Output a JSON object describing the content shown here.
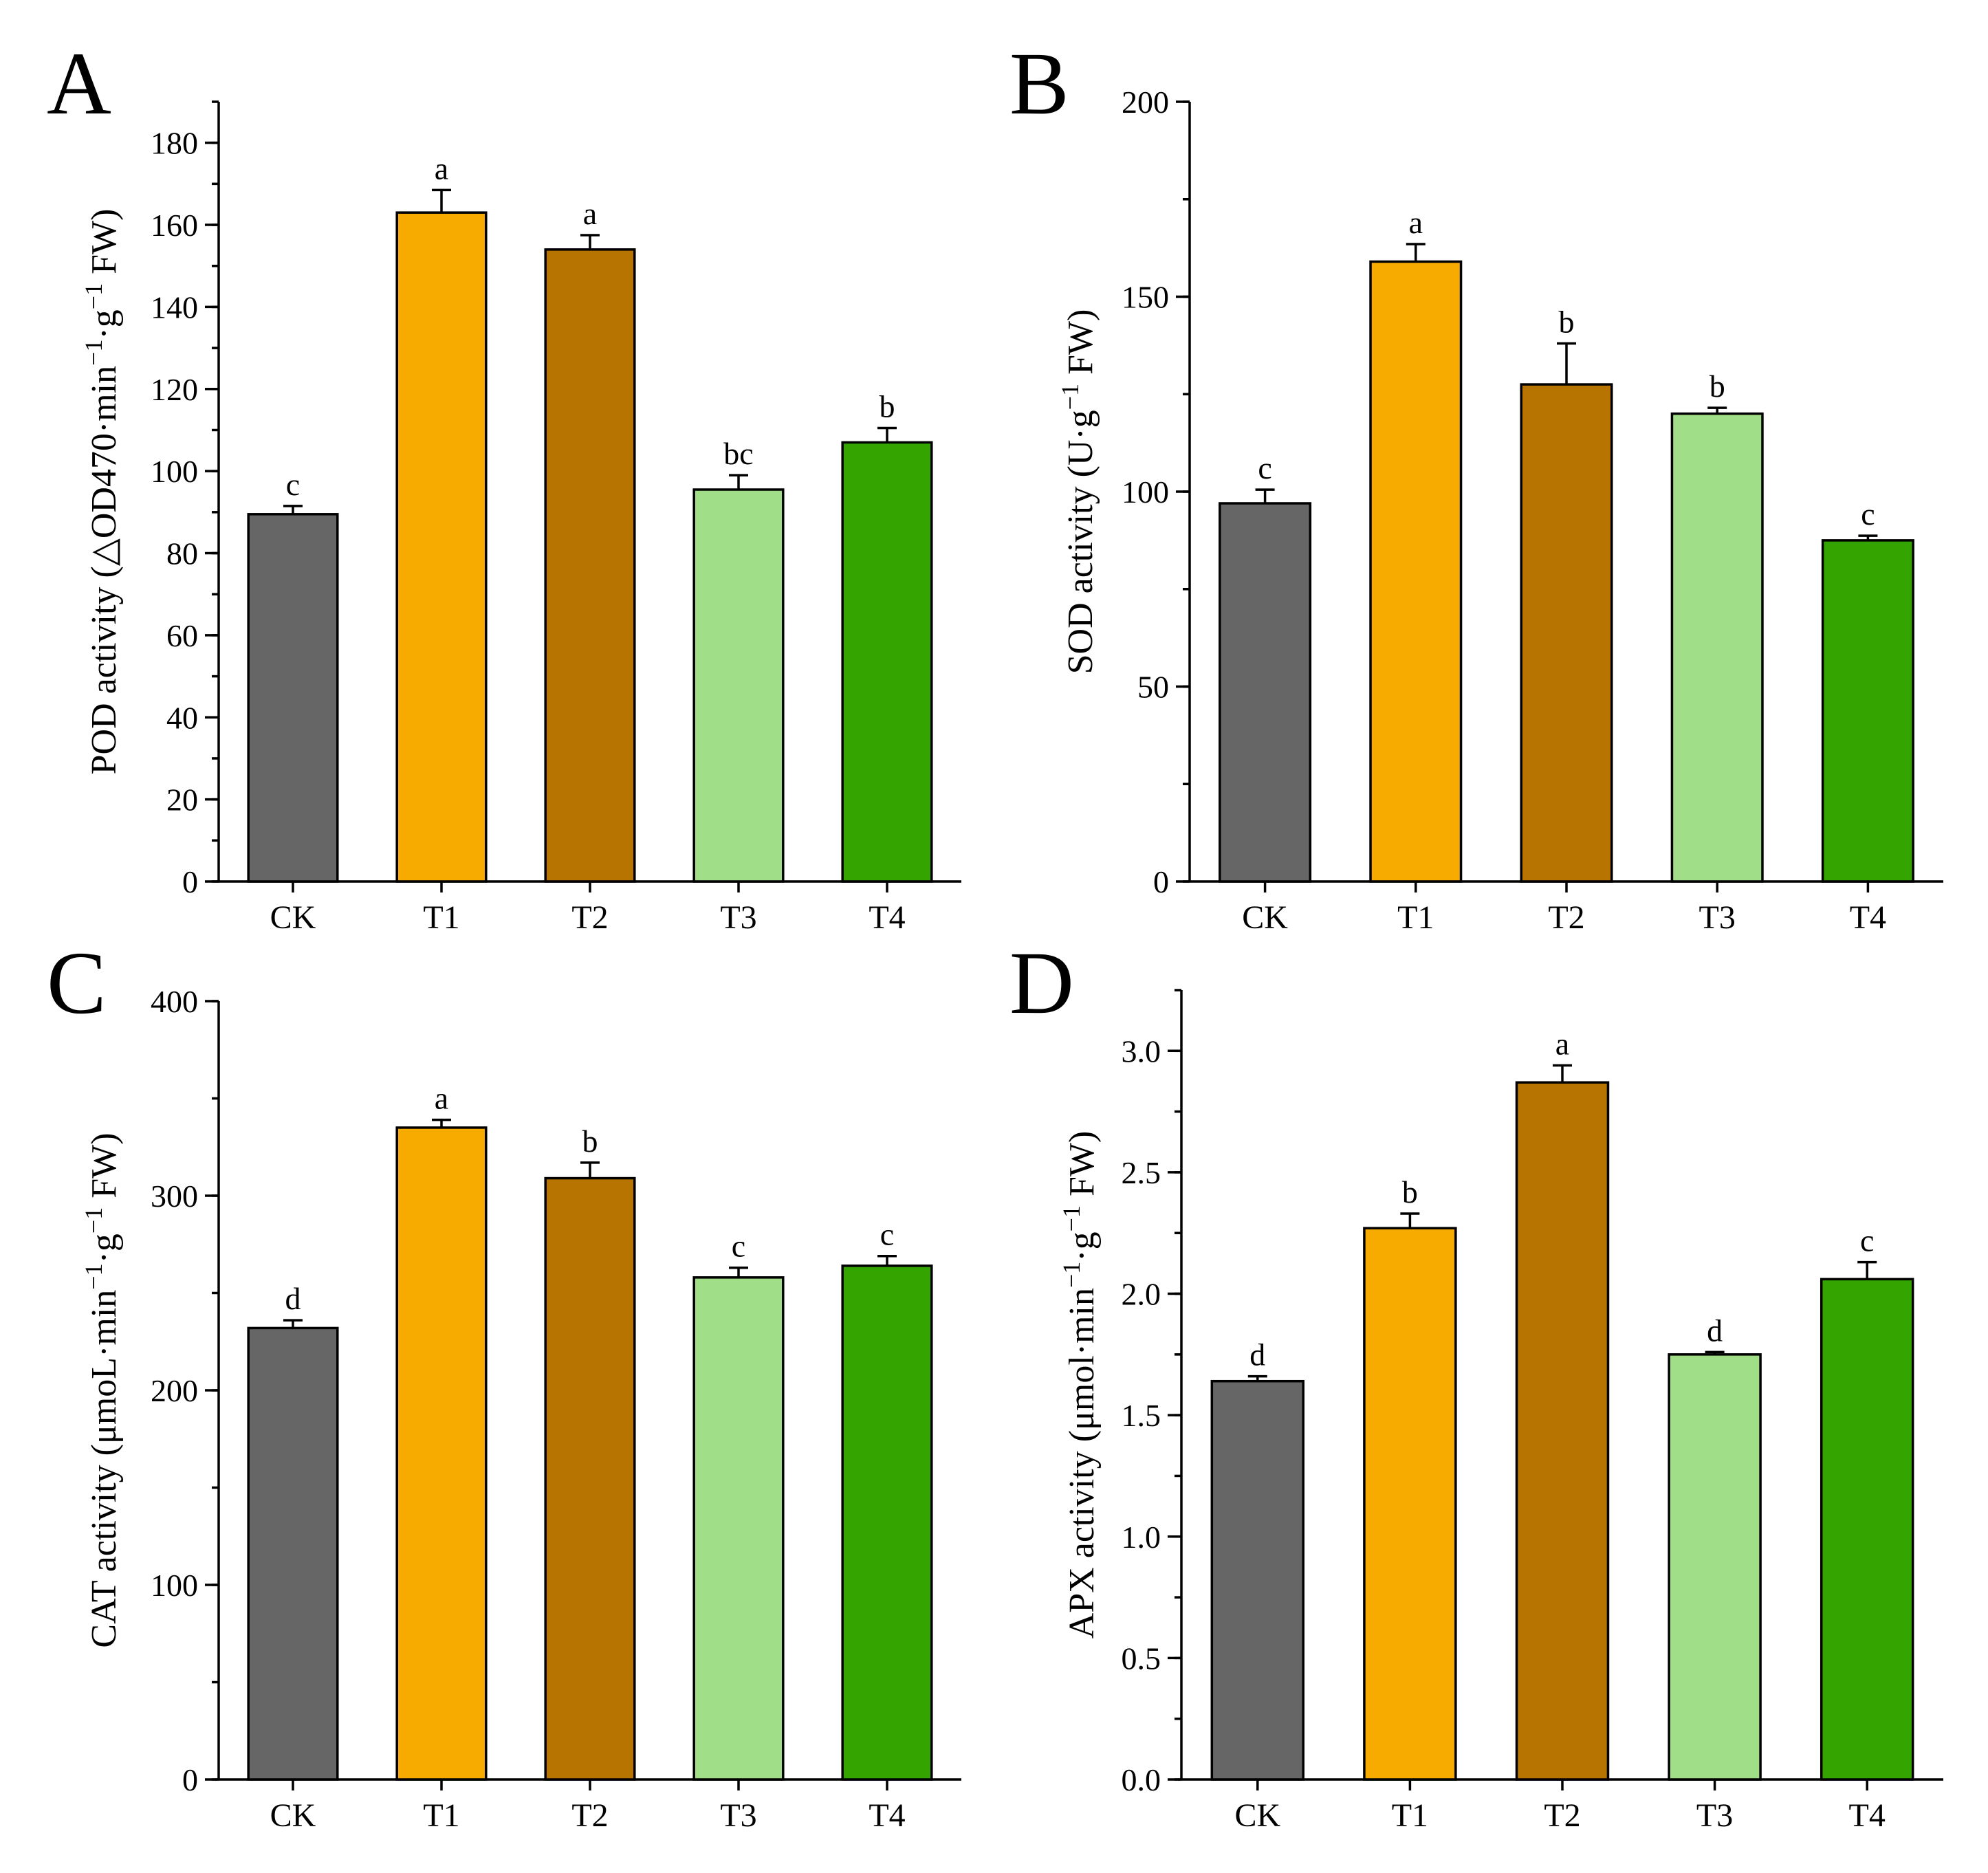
{
  "categories": [
    "CK",
    "T1",
    "T2",
    "T3",
    "T4"
  ],
  "colors": {
    "CK": "#666666",
    "T1": "#f7aa00",
    "T2": "#b77400",
    "T3": "#a0df88",
    "T4": "#33a400"
  },
  "chart_data": [
    {
      "type": "bar",
      "panel": "A",
      "categories": [
        "CK",
        "T1",
        "T2",
        "T3",
        "T4"
      ],
      "values": [
        89.5,
        163,
        154,
        95.5,
        107
      ],
      "errors": [
        2,
        5.5,
        3.5,
        3.5,
        3.5
      ],
      "significance": [
        "c",
        "a",
        "a",
        "bc",
        "b"
      ],
      "ylabel_parts": [
        {
          "text": "POD activity (",
          "sup": false
        },
        {
          "text": "△",
          "sup": false
        },
        {
          "text": "OD470·min",
          "sup": false
        },
        {
          "text": "−1",
          "sup": true
        },
        {
          "text": "·g",
          "sup": false
        },
        {
          "text": "−1",
          "sup": true
        },
        {
          "text": " FW)",
          "sup": false
        }
      ],
      "ylim": [
        0,
        190
      ],
      "yticks": [
        0,
        20,
        40,
        60,
        80,
        100,
        120,
        140,
        160,
        180
      ],
      "ytick_labels": [
        "0",
        "20",
        "40",
        "60",
        "80",
        "100",
        "120",
        "140",
        "160",
        "180"
      ],
      "minor_step": 10
    },
    {
      "type": "bar",
      "panel": "B",
      "categories": [
        "CK",
        "T1",
        "T2",
        "T3",
        "T4"
      ],
      "values": [
        97,
        159,
        127.5,
        120,
        87.5
      ],
      "errors": [
        3.5,
        4.5,
        10.5,
        1.5,
        1.2
      ],
      "significance": [
        "c",
        "a",
        "b",
        "b",
        "c"
      ],
      "ylabel_parts": [
        {
          "text": "SOD activity (U·g",
          "sup": false
        },
        {
          "text": "−1",
          "sup": true
        },
        {
          "text": " FW)",
          "sup": false
        }
      ],
      "ylim": [
        0,
        200
      ],
      "yticks": [
        0,
        50,
        100,
        150,
        200
      ],
      "ytick_labels": [
        "0",
        "50",
        "100",
        "150",
        "200"
      ],
      "minor_step": 25
    },
    {
      "type": "bar",
      "panel": "C",
      "categories": [
        "CK",
        "T1",
        "T2",
        "T3",
        "T4"
      ],
      "values": [
        232,
        335,
        309,
        258,
        264
      ],
      "errors": [
        4,
        4,
        8,
        5,
        5
      ],
      "significance": [
        "d",
        "a",
        "b",
        "c",
        "c"
      ],
      "ylabel_parts": [
        {
          "text": "CAT activity (μmoL·min",
          "sup": false
        },
        {
          "text": "−1",
          "sup": true
        },
        {
          "text": "·g",
          "sup": false
        },
        {
          "text": "−1",
          "sup": true
        },
        {
          "text": " FW)",
          "sup": false
        }
      ],
      "ylim": [
        0,
        400
      ],
      "yticks": [
        0,
        100,
        200,
        300,
        400
      ],
      "ytick_labels": [
        "0",
        "100",
        "200",
        "300",
        "400"
      ],
      "minor_step": 50
    },
    {
      "type": "bar",
      "panel": "D",
      "categories": [
        "CK",
        "T1",
        "T2",
        "T3",
        "T4"
      ],
      "values": [
        1.64,
        2.27,
        2.87,
        1.75,
        2.06
      ],
      "errors": [
        0.02,
        0.06,
        0.07,
        0.01,
        0.07
      ],
      "significance": [
        "d",
        "b",
        "a",
        "d",
        "c"
      ],
      "ylabel_parts": [
        {
          "text": "APX activity (μmol·min",
          "sup": false
        },
        {
          "text": "−1",
          "sup": true
        },
        {
          "text": "·g",
          "sup": false
        },
        {
          "text": "−1",
          "sup": true
        },
        {
          "text": " FW)",
          "sup": false
        }
      ],
      "ylim": [
        0,
        3.25
      ],
      "yticks": [
        0,
        0.5,
        1.0,
        1.5,
        2.0,
        2.5,
        3.0
      ],
      "ytick_labels": [
        "0.0",
        "0.5",
        "1.0",
        "1.5",
        "2.0",
        "2.5",
        "3.0"
      ],
      "minor_step": 0.25
    }
  ]
}
